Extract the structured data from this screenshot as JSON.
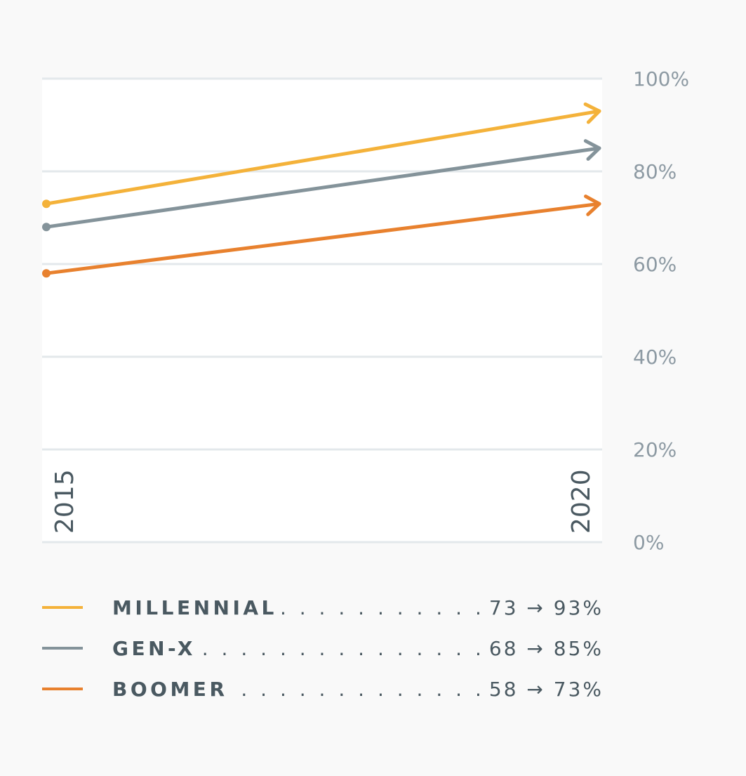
{
  "chart_data": {
    "type": "line",
    "title": "",
    "xlabel": "",
    "ylabel": "",
    "x": [
      "2015",
      "2020"
    ],
    "ylim": [
      0,
      100
    ],
    "yticks": [
      0,
      20,
      40,
      60,
      80,
      100
    ],
    "ytick_labels": [
      "0%",
      "20%",
      "40%",
      "60%",
      "80%",
      "100%"
    ],
    "grid": true,
    "legend_position": "bottom",
    "series": [
      {
        "name": "MILLENNIAL",
        "values": [
          73,
          93
        ],
        "color": "#f4b23a",
        "range_label": "73 → 93%"
      },
      {
        "name": "GEN-X",
        "values": [
          68,
          85
        ],
        "color": "#84939a",
        "range_label": "68 → 85%"
      },
      {
        "name": "BOOMER",
        "values": [
          58,
          73
        ],
        "color": "#e8812e",
        "range_label": "58 → 73%"
      }
    ],
    "dot_leader": ". . . . . . . . . . . . . . . . . . . . . . . . . . . . . . . . . . . . . . ."
  }
}
